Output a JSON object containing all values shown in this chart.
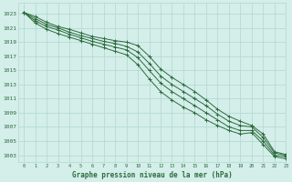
{
  "title": "Graphe pression niveau de la mer (hPa)",
  "background_color": "#d4eeea",
  "grid_color": "#b0d8d0",
  "line_color": "#2d6b3c",
  "xlim": [
    -0.5,
    23
  ],
  "ylim": [
    1002,
    1024.5
  ],
  "xticks": [
    0,
    1,
    2,
    3,
    4,
    5,
    6,
    7,
    8,
    9,
    10,
    11,
    12,
    13,
    14,
    15,
    16,
    17,
    18,
    19,
    20,
    21,
    22,
    23
  ],
  "yticks": [
    1003,
    1005,
    1007,
    1009,
    1011,
    1013,
    1015,
    1017,
    1019,
    1021,
    1023
  ],
  "series": [
    [
      1023.2,
      1022.6,
      1021.8,
      1021.2,
      1020.8,
      1020.3,
      1019.8,
      1019.5,
      1019.2,
      1019.0,
      1018.5,
      1017.0,
      1015.2,
      1014.0,
      1013.0,
      1012.0,
      1010.8,
      1009.5,
      1008.5,
      1007.8,
      1007.2,
      1006.0,
      1003.5,
      1003.1
    ],
    [
      1023.2,
      1022.3,
      1021.5,
      1021.0,
      1020.4,
      1019.9,
      1019.5,
      1019.1,
      1018.8,
      1018.4,
      1017.6,
      1016.0,
      1014.2,
      1013.0,
      1012.0,
      1011.0,
      1010.0,
      1008.8,
      1007.8,
      1007.2,
      1007.0,
      1005.5,
      1003.3,
      1003.0
    ],
    [
      1023.2,
      1022.0,
      1021.2,
      1020.7,
      1020.1,
      1019.6,
      1019.1,
      1018.7,
      1018.3,
      1017.9,
      1016.8,
      1015.0,
      1013.2,
      1012.0,
      1011.0,
      1010.0,
      1009.0,
      1008.0,
      1007.0,
      1006.5,
      1006.5,
      1005.0,
      1003.0,
      1002.8
    ],
    [
      1023.2,
      1021.7,
      1020.8,
      1020.2,
      1019.7,
      1019.2,
      1018.7,
      1018.2,
      1017.7,
      1017.2,
      1015.8,
      1013.8,
      1012.0,
      1010.8,
      1009.8,
      1009.0,
      1008.0,
      1007.2,
      1006.5,
      1006.0,
      1006.2,
      1004.5,
      1002.8,
      1002.5
    ]
  ]
}
